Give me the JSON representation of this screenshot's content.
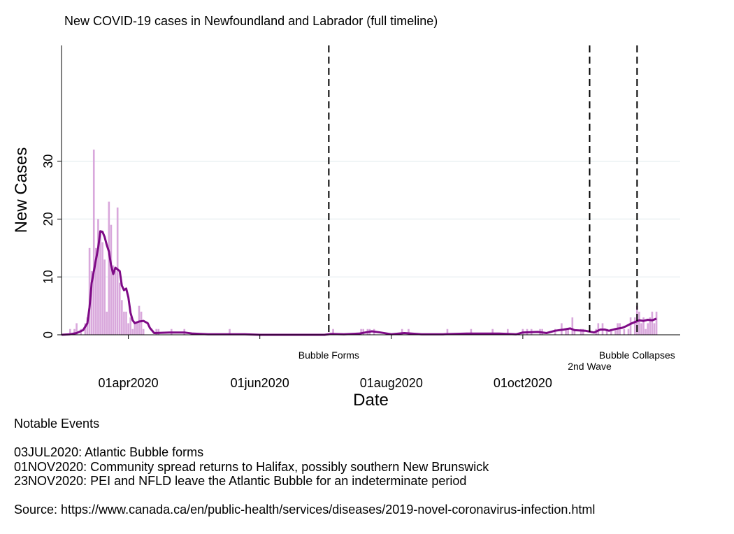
{
  "chart_data": {
    "type": "bar",
    "title": "New COVID-19 cases in Newfoundland and Labrador (full timeline)",
    "xlabel": "Date",
    "ylabel": "New Cases",
    "ylim": [
      0,
      50
    ],
    "yticks": [
      "0",
      "10",
      "20",
      "30"
    ],
    "xlim": [
      "2020-03-01",
      "2020-12-13"
    ],
    "xticks": [
      {
        "date": "2020-04-01",
        "label": "01apr2020"
      },
      {
        "date": "2020-06-01",
        "label": "01jun2020"
      },
      {
        "date": "2020-08-01",
        "label": "01aug2020"
      },
      {
        "date": "2020-10-01",
        "label": "01oct2020"
      }
    ],
    "grid": true,
    "bar_color": "#d9a8dc",
    "line_color": "#7e0a86",
    "series": [
      {
        "name": "",
        "kind": "bar",
        "points": [
          [
            "2020-03-05",
            1
          ],
          [
            "2020-03-07",
            1
          ],
          [
            "2020-03-08",
            2
          ],
          [
            "2020-03-10",
            1
          ],
          [
            "2020-03-12",
            2
          ],
          [
            "2020-03-13",
            3
          ],
          [
            "2020-03-14",
            15
          ],
          [
            "2020-03-15",
            11
          ],
          [
            "2020-03-16",
            32
          ],
          [
            "2020-03-17",
            15
          ],
          [
            "2020-03-18",
            20
          ],
          [
            "2020-03-19",
            18
          ],
          [
            "2020-03-20",
            16
          ],
          [
            "2020-03-21",
            13
          ],
          [
            "2020-03-22",
            4
          ],
          [
            "2020-03-23",
            23
          ],
          [
            "2020-03-24",
            19
          ],
          [
            "2020-03-25",
            12
          ],
          [
            "2020-03-26",
            11
          ],
          [
            "2020-03-27",
            22
          ],
          [
            "2020-03-28",
            9
          ],
          [
            "2020-03-29",
            6
          ],
          [
            "2020-03-30",
            4
          ],
          [
            "2020-03-31",
            4
          ],
          [
            "2020-04-01",
            2
          ],
          [
            "2020-04-02",
            3
          ],
          [
            "2020-04-03",
            1
          ],
          [
            "2020-04-04",
            2
          ],
          [
            "2020-04-05",
            2
          ],
          [
            "2020-04-06",
            5
          ],
          [
            "2020-04-07",
            4
          ],
          [
            "2020-04-08",
            1
          ],
          [
            "2020-04-14",
            1
          ],
          [
            "2020-04-15",
            1
          ],
          [
            "2020-04-21",
            1
          ],
          [
            "2020-04-27",
            1
          ],
          [
            "2020-05-18",
            1
          ],
          [
            "2020-07-05",
            1
          ],
          [
            "2020-07-18",
            1
          ],
          [
            "2020-07-19",
            1
          ],
          [
            "2020-07-21",
            1
          ],
          [
            "2020-07-22",
            1
          ],
          [
            "2020-07-24",
            1
          ],
          [
            "2020-08-06",
            1
          ],
          [
            "2020-08-09",
            1
          ],
          [
            "2020-08-27",
            1
          ],
          [
            "2020-09-07",
            1
          ],
          [
            "2020-09-17",
            1
          ],
          [
            "2020-09-24",
            1
          ],
          [
            "2020-10-01",
            1
          ],
          [
            "2020-10-03",
            1
          ],
          [
            "2020-10-05",
            1
          ],
          [
            "2020-10-09",
            1
          ],
          [
            "2020-10-10",
            1
          ],
          [
            "2020-10-16",
            1
          ],
          [
            "2020-10-19",
            2
          ],
          [
            "2020-10-21",
            1
          ],
          [
            "2020-10-22",
            1
          ],
          [
            "2020-10-24",
            3
          ],
          [
            "2020-10-25",
            1
          ],
          [
            "2020-10-28",
            1
          ],
          [
            "2020-10-29",
            1
          ],
          [
            "2020-11-04",
            1
          ],
          [
            "2020-11-05",
            2
          ],
          [
            "2020-11-07",
            2
          ],
          [
            "2020-11-09",
            1
          ],
          [
            "2020-11-11",
            1
          ],
          [
            "2020-11-13",
            1
          ],
          [
            "2020-11-14",
            2
          ],
          [
            "2020-11-15",
            2
          ],
          [
            "2020-11-17",
            1
          ],
          [
            "2020-11-19",
            1
          ],
          [
            "2020-11-20",
            3
          ],
          [
            "2020-11-22",
            3
          ],
          [
            "2020-11-23",
            5
          ],
          [
            "2020-11-24",
            4
          ],
          [
            "2020-11-25",
            2
          ],
          [
            "2020-11-26",
            3
          ],
          [
            "2020-11-27",
            1
          ],
          [
            "2020-11-28",
            2
          ],
          [
            "2020-11-29",
            3
          ],
          [
            "2020-11-30",
            4
          ],
          [
            "2020-12-01",
            2
          ],
          [
            "2020-12-02",
            4
          ]
        ]
      },
      {
        "name": "",
        "kind": "line",
        "points": [
          [
            "2020-03-01",
            0
          ],
          [
            "2020-03-05",
            0.1
          ],
          [
            "2020-03-08",
            0.3
          ],
          [
            "2020-03-11",
            0.8
          ],
          [
            "2020-03-13",
            2
          ],
          [
            "2020-03-14",
            4.8
          ],
          [
            "2020-03-15",
            9
          ],
          [
            "2020-03-16",
            11
          ],
          [
            "2020-03-17",
            13
          ],
          [
            "2020-03-18",
            15
          ],
          [
            "2020-03-19",
            17.9
          ],
          [
            "2020-03-20",
            17.8
          ],
          [
            "2020-03-21",
            16.9
          ],
          [
            "2020-03-22",
            15.5
          ],
          [
            "2020-03-23",
            14.4
          ],
          [
            "2020-03-24",
            12
          ],
          [
            "2020-03-25",
            10.5
          ],
          [
            "2020-03-26",
            11.6
          ],
          [
            "2020-03-27",
            11.3
          ],
          [
            "2020-03-28",
            11
          ],
          [
            "2020-03-29",
            8.5
          ],
          [
            "2020-03-30",
            7.7
          ],
          [
            "2020-03-31",
            8
          ],
          [
            "2020-04-01",
            6.5
          ],
          [
            "2020-04-02",
            3.8
          ],
          [
            "2020-04-03",
            2.5
          ],
          [
            "2020-04-04",
            2
          ],
          [
            "2020-04-06",
            2.3
          ],
          [
            "2020-04-08",
            2.4
          ],
          [
            "2020-04-10",
            2
          ],
          [
            "2020-04-11",
            1.2
          ],
          [
            "2020-04-13",
            0.3
          ],
          [
            "2020-04-20",
            0.4
          ],
          [
            "2020-04-27",
            0.4
          ],
          [
            "2020-05-01",
            0.2
          ],
          [
            "2020-05-08",
            0.1
          ],
          [
            "2020-05-15",
            0.1
          ],
          [
            "2020-05-20",
            0.1
          ],
          [
            "2020-05-25",
            0.1
          ],
          [
            "2020-06-01",
            0
          ],
          [
            "2020-07-01",
            0
          ],
          [
            "2020-07-04",
            0.15
          ],
          [
            "2020-07-10",
            0.1
          ],
          [
            "2020-07-17",
            0.2
          ],
          [
            "2020-07-23",
            0.6
          ],
          [
            "2020-07-27",
            0.4
          ],
          [
            "2020-08-01",
            0.1
          ],
          [
            "2020-08-07",
            0.3
          ],
          [
            "2020-08-15",
            0.1
          ],
          [
            "2020-08-25",
            0.1
          ],
          [
            "2020-09-05",
            0.2
          ],
          [
            "2020-09-20",
            0.2
          ],
          [
            "2020-09-28",
            0.1
          ],
          [
            "2020-10-01",
            0.4
          ],
          [
            "2020-10-08",
            0.5
          ],
          [
            "2020-10-12",
            0.3
          ],
          [
            "2020-10-16",
            0.7
          ],
          [
            "2020-10-20",
            0.9
          ],
          [
            "2020-10-23",
            1.1
          ],
          [
            "2020-10-25",
            0.8
          ],
          [
            "2020-10-30",
            0.7
          ],
          [
            "2020-11-03",
            0.4
          ],
          [
            "2020-11-06",
            0.9
          ],
          [
            "2020-11-08",
            0.9
          ],
          [
            "2020-11-10",
            0.7
          ],
          [
            "2020-11-13",
            1
          ],
          [
            "2020-11-16",
            1.2
          ],
          [
            "2020-11-18",
            1.5
          ],
          [
            "2020-11-20",
            1.9
          ],
          [
            "2020-11-22",
            2.2
          ],
          [
            "2020-11-24",
            2.5
          ],
          [
            "2020-11-26",
            2.4
          ],
          [
            "2020-11-28",
            2.6
          ],
          [
            "2020-11-30",
            2.5
          ],
          [
            "2020-12-02",
            2.8
          ]
        ]
      }
    ],
    "event_lines": [
      {
        "date": "2020-07-03",
        "label": "Bubble Forms"
      },
      {
        "date": "2020-11-01",
        "label": "2nd Wave"
      },
      {
        "date": "2020-11-23",
        "label": "Bubble Collapses"
      }
    ]
  },
  "notes": {
    "heading": "Notable Events",
    "events": [
      "03JUL2020: Atlantic Bubble forms",
      "01NOV2020: Community spread returns to Halifax, possibly southern New Brunswick",
      "23NOV2020: PEI and NFLD leave the Atlantic Bubble for an indeterminate period"
    ],
    "source": "Source: https://www.canada.ca/en/public-health/services/diseases/2019-novel-coronavirus-infection.html"
  }
}
